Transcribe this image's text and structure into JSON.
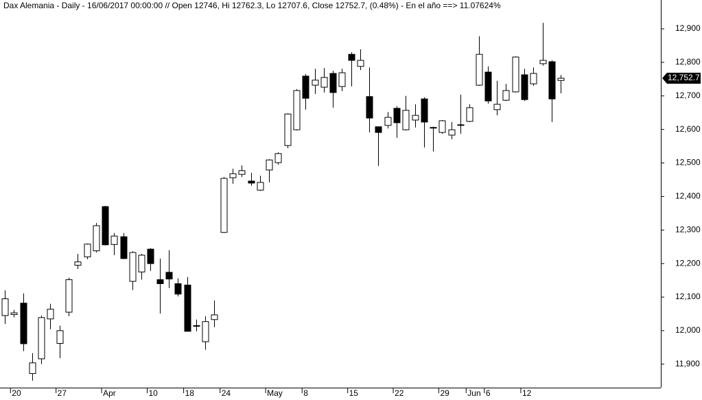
{
  "chart_data": {
    "type": "candlestick",
    "title": "Dax Alemania - Daily - 16/06/2017 00:00:00 // Open 12746, Hi 12762.3, Lo 12707.6, Close 12752.7, (0.48%) - En el año ==> 11.07624%",
    "categories": [
      null,
      "20",
      null,
      null,
      null,
      null,
      "27",
      null,
      null,
      null,
      null,
      "Apr",
      null,
      null,
      null,
      null,
      "10",
      null,
      null,
      null,
      "18",
      null,
      null,
      null,
      "24",
      null,
      null,
      null,
      null,
      "May",
      null,
      null,
      null,
      "8",
      null,
      null,
      null,
      null,
      "15",
      null,
      null,
      null,
      null,
      "22",
      null,
      null,
      null,
      null,
      "29",
      null,
      null,
      "Jun",
      null,
      "6",
      null,
      null,
      null,
      "12",
      null,
      null,
      null,
      null
    ],
    "open": [
      12045,
      12048,
      12082,
      11872,
      11916,
      12035,
      11962,
      12055,
      12195,
      12220,
      12238,
      12370,
      12257,
      12280,
      12147,
      12175,
      12243,
      12152,
      12174,
      12140,
      12136,
      12015,
      11967,
      12033,
      12293,
      12456,
      12466,
      12446,
      12419,
      12479,
      12501,
      12552,
      12599,
      12759,
      12732,
      12726,
      12767,
      12728,
      12824,
      12788,
      12698,
      12608,
      12612,
      12663,
      12599,
      12628,
      12691,
      12606,
      12591,
      12583,
      12613,
      12624,
      12732,
      12771,
      12659,
      12687,
      12712,
      12763,
      12736,
      12796,
      12802,
      12746
    ],
    "high": [
      12120,
      12062,
      12111,
      11933,
      12045,
      12080,
      12015,
      12158,
      12229,
      12260,
      12321,
      12372,
      12291,
      12291,
      12237,
      12229,
      12246,
      12215,
      12240,
      12156,
      12160,
      12033,
      12043,
      12090,
      12458,
      12483,
      12493,
      12471,
      12462,
      12511,
      12532,
      12648,
      12720,
      12765,
      12781,
      12783,
      12775,
      12781,
      12830,
      12839,
      12785,
      12608,
      12652,
      12669,
      12700,
      12675,
      12696,
      12608,
      12628,
      12622,
      12704,
      12675,
      12878,
      12788,
      12745,
      12736,
      12818,
      12781,
      12785,
      12918,
      12806,
      12762.3
    ],
    "low": [
      12020,
      12040,
      11939,
      11851,
      11900,
      12004,
      11918,
      12043,
      12184,
      12213,
      12233,
      12254,
      12225,
      12213,
      12121,
      12152,
      12178,
      12051,
      12127,
      12102,
      11998,
      11998,
      11943,
      12010,
      12291,
      12438,
      12458,
      12432,
      12417,
      12442,
      12495,
      12544,
      12597,
      12659,
      12706,
      12710,
      12665,
      12714,
      12728,
      12777,
      12591,
      12491,
      12603,
      12575,
      12597,
      12606,
      12546,
      12534,
      12587,
      12571,
      12587,
      12622,
      12730,
      12677,
      12642,
      12685,
      12710,
      12685,
      12730,
      12790,
      12622,
      12707.6
    ],
    "close": [
      12095,
      12053,
      11961,
      11904,
      12039,
      12064,
      12000,
      12152,
      12205,
      12258,
      12313,
      12256,
      12282,
      12215,
      12233,
      12225,
      12200,
      12140,
      12154,
      12109,
      11998,
      12015,
      12027,
      12047,
      12454,
      12468,
      12477,
      12440,
      12442,
      12509,
      12528,
      12646,
      12716,
      12693,
      12747,
      12755,
      12710,
      12769,
      12806,
      12806,
      12634,
      12591,
      12636,
      12620,
      12657,
      12642,
      12622,
      12606,
      12626,
      12599,
      12614,
      12665,
      12824,
      12685,
      12675,
      12716,
      12816,
      12689,
      12767,
      12806,
      12691,
      12752.7
    ],
    "last_close_label": "12,752.7",
    "up_color": "#ffffff",
    "down_color": "#000000",
    "ylim": [
      11830,
      12986
    ],
    "yticks": [
      {
        "value": 11900,
        "label": "11,900"
      },
      {
        "value": 12000,
        "label": "12,000"
      },
      {
        "value": 12100,
        "label": "12,100"
      },
      {
        "value": 12200,
        "label": "12,200"
      },
      {
        "value": 12300,
        "label": "12,300"
      },
      {
        "value": 12400,
        "label": "12,400"
      },
      {
        "value": 12500,
        "label": "12,500"
      },
      {
        "value": 12600,
        "label": "12,600"
      },
      {
        "value": 12700,
        "label": "12,700"
      },
      {
        "value": 12800,
        "label": "12,800"
      },
      {
        "value": 12900,
        "label": "12,900"
      }
    ]
  }
}
